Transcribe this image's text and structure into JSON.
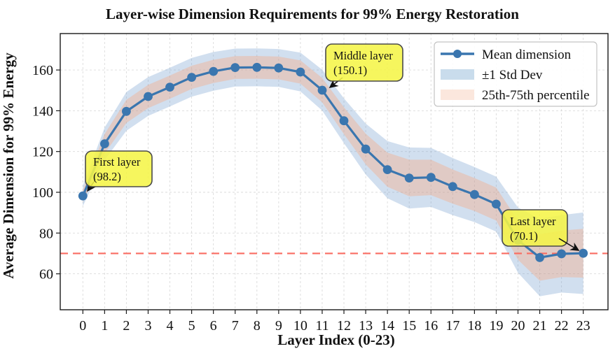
{
  "chart_data": {
    "type": "line",
    "title": "Layer-wise Dimension Requirements for 99% Energy Restoration",
    "xlabel": "Layer Index (0-23)",
    "ylabel": "Average Dimension for 99% Energy",
    "x": [
      0,
      1,
      2,
      3,
      4,
      5,
      6,
      7,
      8,
      9,
      10,
      11,
      12,
      13,
      14,
      15,
      16,
      17,
      18,
      19,
      20,
      21,
      22,
      23
    ],
    "series": [
      {
        "name": "Mean dimension",
        "values": [
          98.2,
          123.8,
          139.7,
          147.0,
          151.6,
          156.4,
          159.3,
          161.2,
          161.3,
          161.0,
          159.0,
          150.1,
          135.1,
          121.2,
          111.1,
          107.0,
          107.3,
          102.8,
          98.9,
          94.2,
          76.5,
          68.0,
          69.8,
          70.1
        ]
      },
      {
        "name": "+1 Std Dev (upper)",
        "values": [
          103.2,
          131.8,
          149.2,
          156.5,
          161.1,
          165.9,
          168.8,
          170.5,
          170.6,
          170.3,
          168.5,
          160.1,
          146.1,
          133.7,
          125.1,
          122.0,
          121.8,
          116.8,
          112.4,
          107.7,
          92.5,
          87.0,
          88.8,
          90.1
        ]
      },
      {
        "name": "-1 Std Dev (lower)",
        "values": [
          93.2,
          115.8,
          130.2,
          137.5,
          142.1,
          146.9,
          149.8,
          151.9,
          152.0,
          151.7,
          149.5,
          140.1,
          124.1,
          108.7,
          97.1,
          92.0,
          92.8,
          88.8,
          85.4,
          80.7,
          60.5,
          49.0,
          50.8,
          50.1
        ]
      },
      {
        "name": "75th percentile",
        "values": [
          101.2,
          128.6,
          145.4,
          152.7,
          157.3,
          162.1,
          165.0,
          166.8,
          166.9,
          166.6,
          164.7,
          156.1,
          141.7,
          128.7,
          119.5,
          116.0,
          116.0,
          111.2,
          107.0,
          102.3,
          86.1,
          79.4,
          81.2,
          82.1
        ]
      },
      {
        "name": "25th percentile",
        "values": [
          95.2,
          119.0,
          134.0,
          141.3,
          145.9,
          150.7,
          153.6,
          155.6,
          155.7,
          155.4,
          153.3,
          144.1,
          128.5,
          113.7,
          102.7,
          98.0,
          98.6,
          94.4,
          90.8,
          86.1,
          66.9,
          56.6,
          58.4,
          58.1
        ]
      }
    ],
    "yticks": [
      60,
      80,
      100,
      120,
      140,
      160
    ],
    "ylim": [
      42,
      178
    ],
    "grid": true,
    "reference_line_y": 70,
    "legend": {
      "position": "upper right",
      "entries": [
        {
          "label": "Mean dimension",
          "swatch": "line-with-marker"
        },
        {
          "label": "±1 Std Dev",
          "swatch": "blue-band"
        },
        {
          "label": "25th-75th percentile",
          "swatch": "orange-band"
        }
      ]
    },
    "annotations": [
      {
        "title": "First layer",
        "value": "(98.2)",
        "points_to_x": 0,
        "points_to_y": 98.2
      },
      {
        "title": "Middle layer",
        "value": "(150.1)",
        "points_to_x": 11,
        "points_to_y": 150.1
      },
      {
        "title": "Last layer",
        "value": "(70.1)",
        "points_to_x": 23,
        "points_to_y": 70.1
      }
    ],
    "colors": {
      "line": "#3A76AF",
      "std_band": "#729ECE",
      "pct_band": "#FF9E6D",
      "reference_line": "#F96C62",
      "annotation_bg": "#F5F546",
      "legend_blue_patch": "#C9DCEC",
      "legend_orange_patch": "#FBE7DD",
      "grid": "#CFCFCF"
    }
  }
}
